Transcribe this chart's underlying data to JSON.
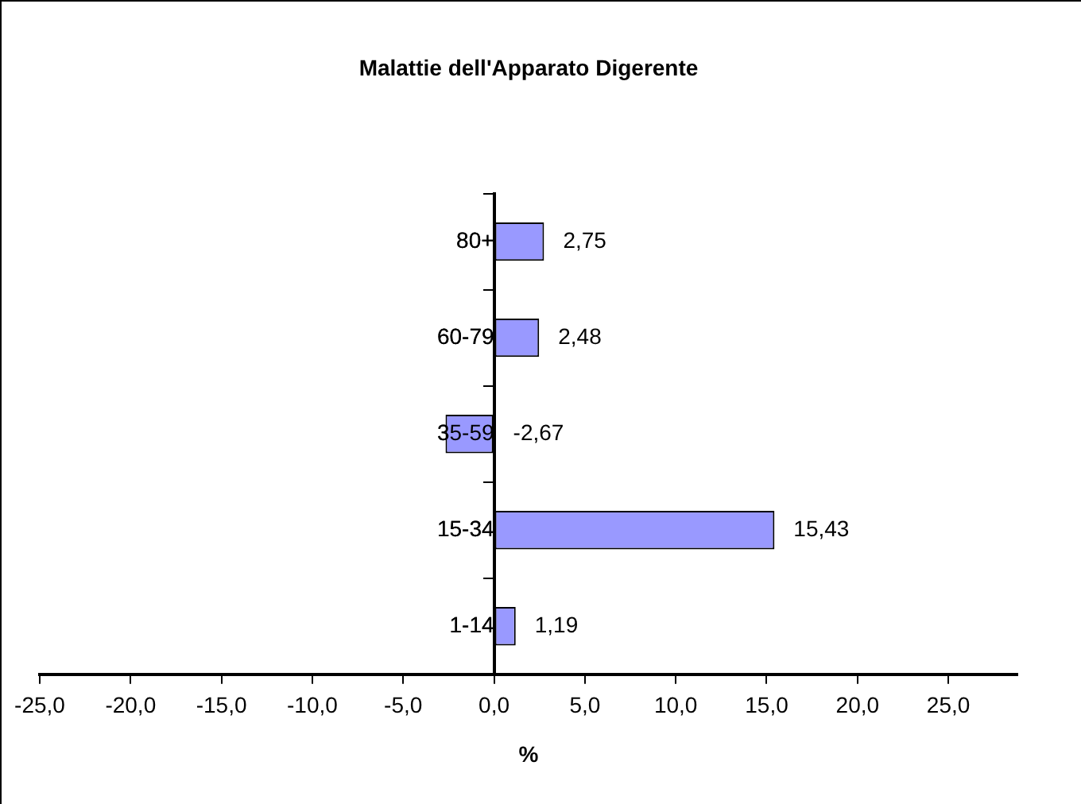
{
  "chart_data": {
    "type": "bar",
    "orientation": "horizontal",
    "title": "Malattie dell'Apparato Digerente",
    "xlabel": "%",
    "categories": [
      "80+",
      "60-79",
      "35-59",
      "15-34",
      "1-14"
    ],
    "values": [
      2.75,
      2.48,
      -2.67,
      15.43,
      1.19
    ],
    "value_labels": [
      "2,75",
      "2,48",
      "-2,67",
      "15,43",
      "1,19"
    ],
    "color": "#9999ff",
    "xlim": [
      -25,
      28.8
    ],
    "xticks": [
      {
        "value": -25,
        "label": "-25,0"
      },
      {
        "value": -20,
        "label": "-20,0"
      },
      {
        "value": -15,
        "label": "-15,0"
      },
      {
        "value": -10,
        "label": "-10,0"
      },
      {
        "value": -5,
        "label": "-5,0"
      },
      {
        "value": 0,
        "label": "0,0"
      },
      {
        "value": 5,
        "label": "5,0"
      },
      {
        "value": 10,
        "label": "10,0"
      },
      {
        "value": 15,
        "label": "15,0"
      },
      {
        "value": 20,
        "label": "20,0"
      },
      {
        "value": 25,
        "label": "25,0"
      }
    ],
    "grid": false,
    "legend": false
  }
}
